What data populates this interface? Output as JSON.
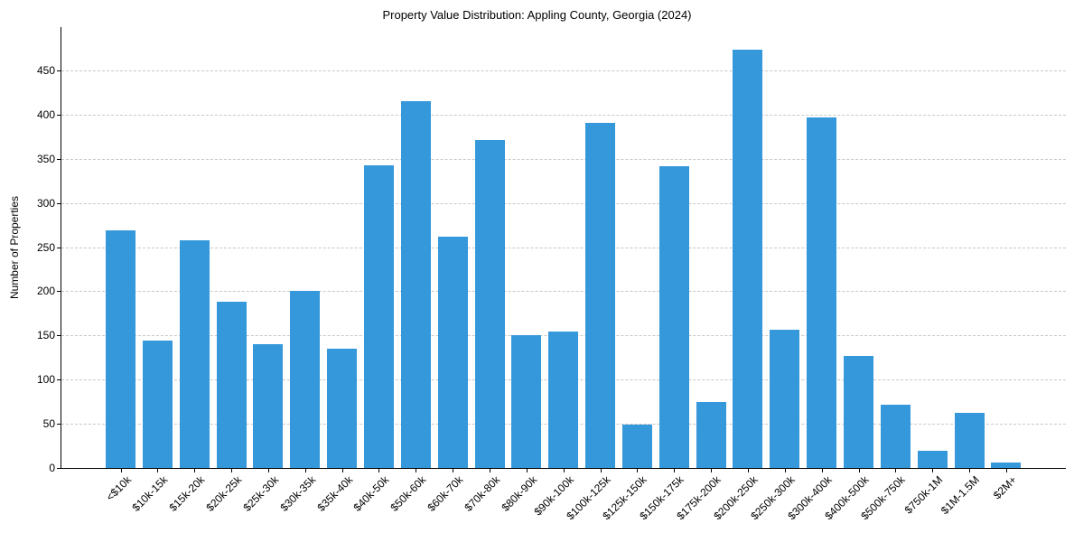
{
  "chart_data": {
    "type": "bar",
    "title": "Property Value Distribution: Appling County, Georgia (2024)",
    "xlabel": "",
    "ylabel": "Number of Properties",
    "ylim": [
      0,
      500
    ],
    "yticks": [
      0,
      50,
      100,
      150,
      200,
      250,
      300,
      350,
      400,
      450
    ],
    "grid": {
      "axis": "y",
      "style": "dashed"
    },
    "legend": null,
    "bar_color": "#3498db",
    "categories": [
      "<$10k",
      "$10k-15k",
      "$15k-20k",
      "$20k-25k",
      "$25k-30k",
      "$30k-35k",
      "$35k-40k",
      "$40k-50k",
      "$50k-60k",
      "$60k-70k",
      "$70k-80k",
      "$80k-90k",
      "$90k-100k",
      "$100k-125k",
      "$125k-150k",
      "$150k-175k",
      "$175k-200k",
      "$200k-250k",
      "$250k-300k",
      "$300k-400k",
      "$400k-500k",
      "$500k-750k",
      "$750k-1M",
      "$1M-1.5M",
      "$2M+"
    ],
    "values": [
      269,
      144,
      258,
      188,
      140,
      200,
      135,
      343,
      415,
      262,
      371,
      150,
      154,
      391,
      49,
      342,
      75,
      474,
      156,
      397,
      127,
      72,
      19,
      62,
      6
    ]
  }
}
